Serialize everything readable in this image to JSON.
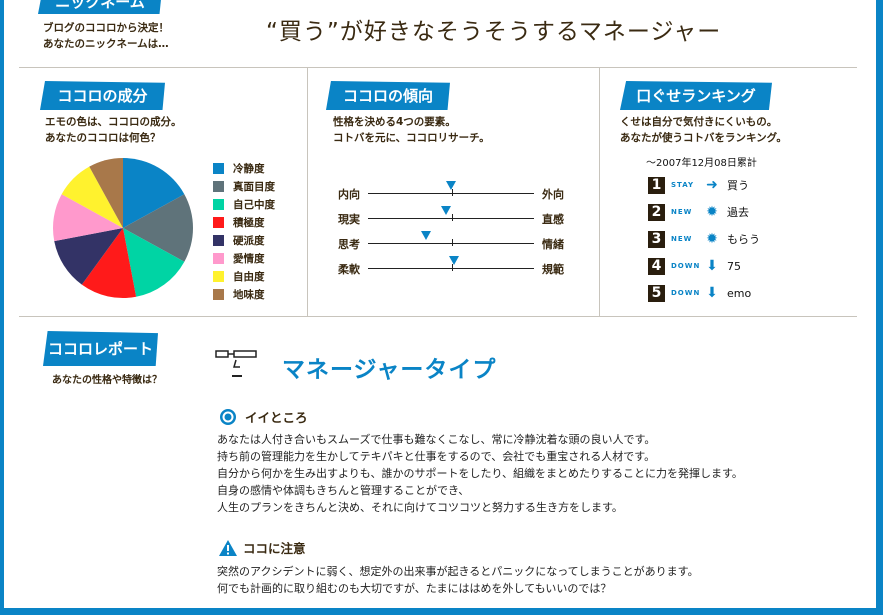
{
  "nickname": {
    "tab": "ニックネーム",
    "desc": [
      "ブログのココロから決定！",
      "あなたのニックネームは…"
    ],
    "value": "“買う”が好きなそうそうするマネージャー"
  },
  "composition": {
    "tab": "ココロの成分",
    "desc": [
      "エモの色は、ココロの成分。",
      "あなたのココロは何色？"
    ]
  },
  "tendency": {
    "tab": "ココロの傾向",
    "desc": [
      "性格を決める4つの要素。",
      "コトバを元に、ココロリサーチ。"
    ],
    "axes": [
      {
        "left": "内向",
        "right": "外向",
        "value": 0.5
      },
      {
        "left": "現実",
        "right": "直感",
        "value": 0.47
      },
      {
        "left": "思考",
        "right": "情緒",
        "value": 0.35
      },
      {
        "left": "柔軟",
        "right": "規範",
        "value": 0.52
      }
    ]
  },
  "ranking": {
    "tab": "口ぐせランキング",
    "desc": [
      "くせは自分で気付きにくいもの。",
      "あなたが使うコトバをランキング。"
    ],
    "date": "～2007年12月08日累計",
    "items": [
      {
        "rank": "1",
        "status": "STAY",
        "icon": "arrow-right-icon",
        "word": "買う"
      },
      {
        "rank": "2",
        "status": "NEW",
        "icon": "burst-icon",
        "word": "過去"
      },
      {
        "rank": "3",
        "status": "NEW",
        "icon": "burst-icon",
        "word": "もらう"
      },
      {
        "rank": "4",
        "status": "DOWN",
        "icon": "arrow-down-icon",
        "word": "75"
      },
      {
        "rank": "5",
        "status": "DOWN",
        "icon": "arrow-down-icon",
        "word": "emo"
      }
    ]
  },
  "report": {
    "tab": "ココロレポート",
    "desc": "あなたの性格や特徴は？",
    "type": "マネージャータイプ",
    "good_title": "イイところ",
    "good": [
      "あなたは人付き合いもスムーズで仕事も難なくこなし、常に冷静沈着な頭の良い人です。",
      "持ち前の管理能力を生かしてテキパキと仕事をするので、会社でも重宝される人材です。",
      "自分から何かを生み出すよりも、誰かのサポートをしたり、組織をまとめたりすることに力を発揮します。",
      "自身の感情や体調もきちんと管理することができ、",
      "人生のプランをきちんと決め、それに向けてコツコツと努力する生き方をします。"
    ],
    "caution_title": "ココに注意",
    "caution": [
      "突然のアクシデントに弱く、想定外の出来事が起きるとパニックになってしまうことがあります。",
      "何でも計画的に取り組むのも大切ですが、たまにははめを外してもいいのでは？"
    ]
  },
  "chart_data": {
    "type": "pie",
    "categories": [
      "冷静度",
      "真面目度",
      "自己中度",
      "積極度",
      "硬派度",
      "愛情度",
      "自由度",
      "地味度"
    ],
    "values": [
      17,
      16,
      14,
      13,
      12,
      11,
      9,
      8
    ],
    "colors": [
      "#0a84c6",
      "#5f737a",
      "#00d4a4",
      "#ff1a1a",
      "#333366",
      "#ff99cc",
      "#fff22e",
      "#a8784a"
    ],
    "legend": "right"
  },
  "colors": {
    "accent": "#0a84c6",
    "text": "#3a2a12"
  }
}
